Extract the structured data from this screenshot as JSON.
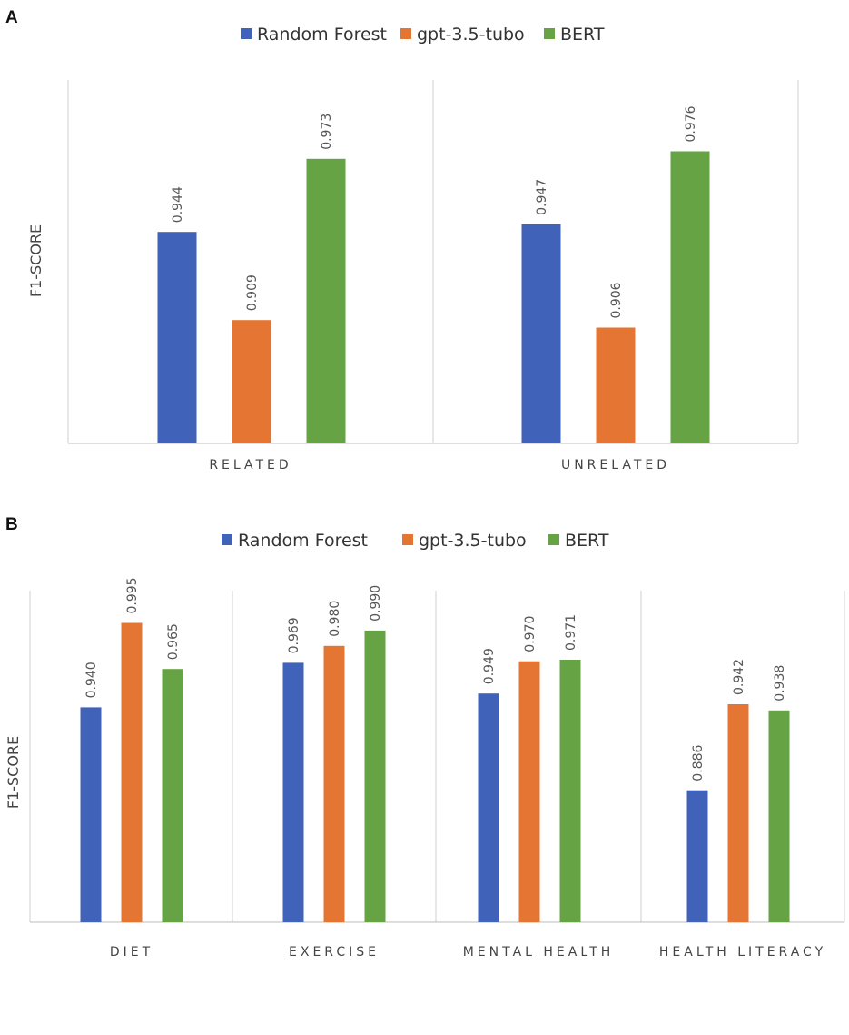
{
  "colors": {
    "Random Forest": "#4062b8",
    "gpt-3.5-tubo": "#e57533",
    "BERT": "#66a344"
  },
  "chart_data": [
    {
      "panel": "A",
      "type": "bar",
      "ylabel": "F1-SCORE",
      "categories": [
        "RELATED",
        "UNRELATED"
      ],
      "series": [
        {
          "name": "Random Forest",
          "values": [
            0.944,
            0.947
          ]
        },
        {
          "name": "gpt-3.5-tubo",
          "values": [
            0.909,
            0.906
          ]
        },
        {
          "name": "BERT",
          "values": [
            0.973,
            0.976
          ]
        }
      ],
      "ylim": [
        0.86,
        1.0
      ],
      "legend": "top-center",
      "grid": false
    },
    {
      "panel": "B",
      "type": "bar",
      "ylabel": "F1-SCORE",
      "categories": [
        "DIET",
        "EXERCISE",
        "MENTAL HEALTH",
        "HEALTH LITERACY"
      ],
      "series": [
        {
          "name": "Random Forest",
          "values": [
            0.94,
            0.969,
            0.949,
            0.886
          ]
        },
        {
          "name": "gpt-3.5-tubo",
          "values": [
            0.995,
            0.98,
            0.97,
            0.942
          ]
        },
        {
          "name": "BERT",
          "values": [
            0.965,
            0.99,
            0.971,
            0.938
          ]
        }
      ],
      "ylim": [
        0.8,
        1.0
      ],
      "legend": "top-center",
      "grid": false
    }
  ]
}
